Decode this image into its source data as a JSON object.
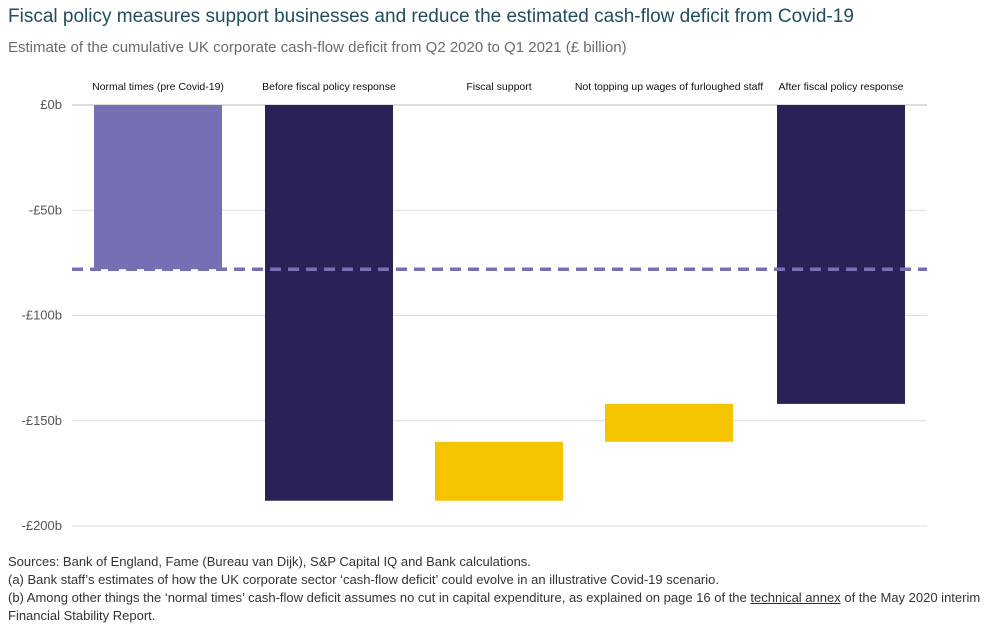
{
  "title": "Fiscal policy measures support businesses and reduce the estimated cash-flow deficit from Covid-19",
  "subtitle": "Estimate of the cumulative UK corporate cash-flow deficit from Q2 2020 to Q1 2021 (£ billion)",
  "colors": {
    "normal": "#7570b3",
    "total": "#2a2257",
    "change": "#f5c400",
    "reference_line": "#7570b3",
    "grid": "#dddddd"
  },
  "chart_data": {
    "type": "bar",
    "subtype": "waterfall",
    "categories": [
      "Normal times (pre Covid-19)",
      "Before fiscal policy response",
      "Fiscal support",
      "Not topping up wages of furloughed staff",
      "After fiscal policy response"
    ],
    "bars": [
      {
        "category": "Normal times (pre Covid-19)",
        "from": 0,
        "to": -78,
        "kind": "normal"
      },
      {
        "category": "Before fiscal policy response",
        "from": 0,
        "to": -188,
        "kind": "total"
      },
      {
        "category": "Fiscal support",
        "from": -188,
        "to": -160,
        "kind": "change"
      },
      {
        "category": "Not topping up wages of furloughed staff",
        "from": -160,
        "to": -142,
        "kind": "change"
      },
      {
        "category": "After fiscal policy response",
        "from": 0,
        "to": -142,
        "kind": "total"
      }
    ],
    "reference_line": {
      "value": -78,
      "style": "dashed"
    },
    "yticks": [
      0,
      -50,
      -100,
      -150,
      -200
    ],
    "ytick_labels": [
      "£0b",
      "-£50b",
      "-£100b",
      "-£150b",
      "-£200b"
    ],
    "ylim": [
      -200,
      0
    ],
    "grid": true,
    "legend": "none"
  },
  "notes": {
    "sources": "Sources: Bank of England, Fame (Bureau van Dijk), S&P Capital IQ and Bank calculations.",
    "note_a": "(a) Bank staff’s estimates of how the UK corporate sector ‘cash-flow deficit’ could evolve in an illustrative Covid-19 scenario.",
    "note_b_pre": "(b) Among other things the ‘normal times’ cash-flow deficit assumes no cut in capital expenditure, as explained on page 16 of the ",
    "note_b_link": "technical annex",
    "note_b_post": " of the May 2020 interim Financial Stability Report."
  }
}
